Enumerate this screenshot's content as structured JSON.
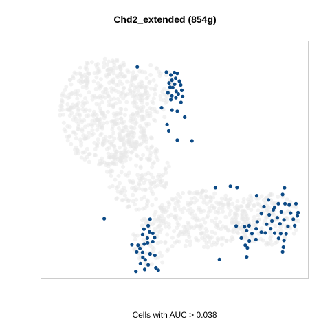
{
  "chart_data": {
    "type": "scatter",
    "title": "Chd2_extended (854g)",
    "caption": "Cells with AUC > 0.038",
    "xlabel": "",
    "ylabel": "",
    "xlim": [
      0,
      100
    ],
    "ylim": [
      0,
      100
    ],
    "grid": false,
    "colors": {
      "background_cells": "#e8e8e8",
      "highlighted_cells": "#0c4a86",
      "frame": "#cccccc"
    },
    "series": [
      {
        "name": "Cells with AUC > 0.038",
        "points": [
          [
            36.0,
            89.2
          ],
          [
            46.9,
            87.0
          ],
          [
            49.9,
            86.8
          ],
          [
            51.0,
            86.5
          ],
          [
            48.6,
            85.8
          ],
          [
            50.4,
            84.4
          ],
          [
            49.0,
            83.6
          ],
          [
            51.8,
            83.2
          ],
          [
            47.9,
            82.4
          ],
          [
            50.0,
            81.9
          ],
          [
            52.3,
            81.6
          ],
          [
            49.3,
            80.5
          ],
          [
            48.3,
            80.6
          ],
          [
            52.7,
            79.3
          ],
          [
            50.6,
            78.9
          ],
          [
            47.5,
            78.3
          ],
          [
            51.4,
            77.8
          ],
          [
            49.0,
            77.0
          ],
          [
            53.0,
            76.7
          ],
          [
            50.5,
            76.2
          ],
          [
            48.6,
            75.4
          ],
          [
            52.4,
            74.2
          ],
          [
            45.1,
            72.0
          ],
          [
            49.0,
            71.0
          ],
          [
            51.0,
            70.5
          ],
          [
            53.8,
            68.0
          ],
          [
            47.2,
            64.8
          ],
          [
            47.8,
            62.2
          ],
          [
            51.0,
            58.3
          ],
          [
            56.5,
            58.0
          ],
          [
            65.3,
            38.3
          ],
          [
            70.9,
            38.9
          ],
          [
            73.4,
            38.3
          ],
          [
            91.2,
            38.2
          ],
          [
            90.5,
            35.4
          ],
          [
            80.8,
            34.9
          ],
          [
            85.2,
            33.1
          ],
          [
            91.4,
            31.5
          ],
          [
            83.5,
            30.3
          ],
          [
            87.5,
            30.0
          ],
          [
            88.9,
            31.5
          ],
          [
            93.0,
            31.0
          ],
          [
            95.5,
            31.5
          ],
          [
            87.0,
            28.9
          ],
          [
            90.0,
            28.0
          ],
          [
            93.5,
            27.5
          ],
          [
            96.3,
            27.7
          ],
          [
            82.5,
            27.3
          ],
          [
            85.5,
            26.8
          ],
          [
            88.5,
            25.6
          ],
          [
            91.0,
            24.7
          ],
          [
            94.5,
            25.0
          ],
          [
            96.0,
            26.4
          ],
          [
            86.5,
            24.2
          ],
          [
            84.5,
            22.8
          ],
          [
            81.0,
            23.8
          ],
          [
            89.5,
            23.0
          ],
          [
            92.5,
            21.9
          ],
          [
            95.0,
            22.2
          ],
          [
            86.0,
            21.0
          ],
          [
            80.6,
            21.0
          ],
          [
            73.1,
            22.1
          ],
          [
            76.2,
            21.8
          ],
          [
            77.9,
            22.2
          ],
          [
            77.0,
            20.2
          ],
          [
            79.0,
            18.9
          ],
          [
            82.5,
            19.5
          ],
          [
            84.0,
            19.2
          ],
          [
            87.5,
            19.1
          ],
          [
            89.8,
            18.9
          ],
          [
            91.8,
            18.8
          ],
          [
            89.0,
            16.9
          ],
          [
            91.0,
            16.0
          ],
          [
            78.0,
            15.8
          ],
          [
            75.0,
            17.0
          ],
          [
            80.5,
            16.4
          ],
          [
            76.5,
            14.0
          ],
          [
            90.8,
            13.2
          ],
          [
            77.3,
            12.9
          ],
          [
            90.5,
            11.2
          ],
          [
            77.0,
            9.1
          ],
          [
            66.8,
            8.0
          ],
          [
            23.6,
            25.2
          ],
          [
            40.8,
            25.0
          ],
          [
            40.1,
            22.2
          ],
          [
            38.5,
            20.8
          ],
          [
            40.6,
            19.6
          ],
          [
            41.8,
            19.0
          ],
          [
            38.0,
            18.5
          ],
          [
            39.8,
            17.0
          ],
          [
            42.5,
            17.2
          ],
          [
            34.0,
            14.2
          ],
          [
            36.3,
            14.0
          ],
          [
            38.6,
            14.5
          ],
          [
            39.9,
            15.0
          ],
          [
            41.8,
            15.5
          ],
          [
            37.0,
            12.7
          ],
          [
            35.8,
            11.2
          ],
          [
            38.0,
            11.0
          ],
          [
            40.8,
            10.3
          ],
          [
            38.1,
            8.9
          ],
          [
            42.6,
            9.7
          ],
          [
            39.0,
            7.9
          ],
          [
            37.2,
            6.3
          ],
          [
            40.1,
            5.7
          ],
          [
            43.0,
            4.5
          ],
          [
            38.8,
            3.8
          ],
          [
            35.5,
            3.0
          ],
          [
            43.9,
            3.5
          ]
        ]
      }
    ]
  }
}
